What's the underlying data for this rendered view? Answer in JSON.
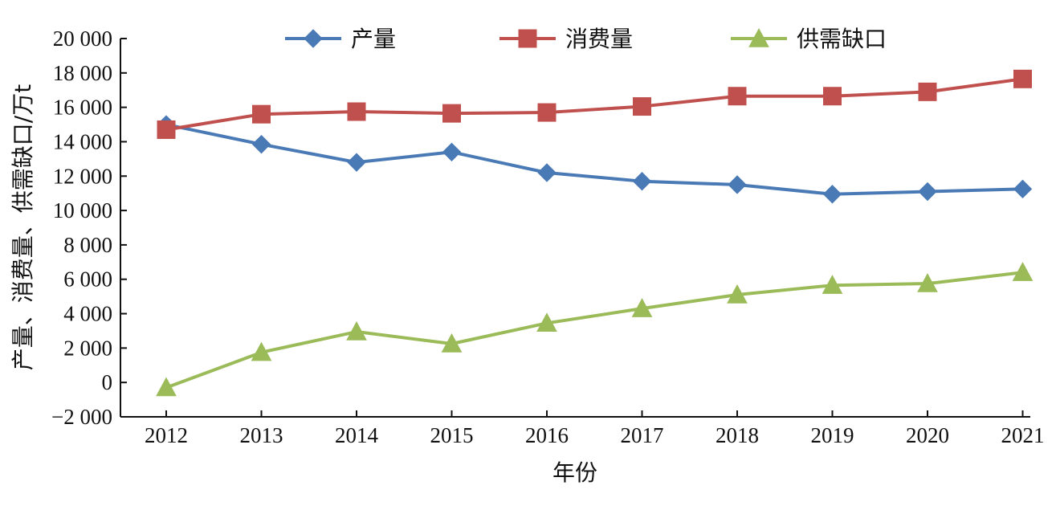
{
  "chart_data": {
    "type": "line",
    "x": [
      "2012",
      "2013",
      "2014",
      "2015",
      "2016",
      "2017",
      "2018",
      "2019",
      "2020",
      "2021"
    ],
    "xlabel": "年份",
    "ylabel": "产量、消费量、供需缺口/万t",
    "ylim": [
      -2000,
      20000
    ],
    "yticks": [
      -2000,
      0,
      2000,
      4000,
      6000,
      8000,
      10000,
      12000,
      14000,
      16000,
      18000,
      20000
    ],
    "ytick_labels": [
      "−2 000",
      "0",
      "2 000",
      "4 000",
      "6 000",
      "8 000",
      "10 000",
      "12 000",
      "14 000",
      "16 000",
      "18 000",
      "20 000"
    ],
    "grid": false,
    "legend_position": "top",
    "series": [
      {
        "name": "产量",
        "color": "#4a7ab5",
        "marker": "diamond",
        "values": [
          15000,
          13850,
          12800,
          13400,
          12200,
          11700,
          11500,
          10950,
          11100,
          11250
        ]
      },
      {
        "name": "消费量",
        "color": "#c0504d",
        "marker": "square",
        "values": [
          14700,
          15600,
          15750,
          15650,
          15700,
          16050,
          16650,
          16650,
          16900,
          17650
        ]
      },
      {
        "name": "供需缺口",
        "color": "#9bbb59",
        "marker": "triangle",
        "values": [
          -300,
          1750,
          2950,
          2250,
          3450,
          4300,
          5100,
          5650,
          5750,
          6400
        ]
      }
    ]
  }
}
